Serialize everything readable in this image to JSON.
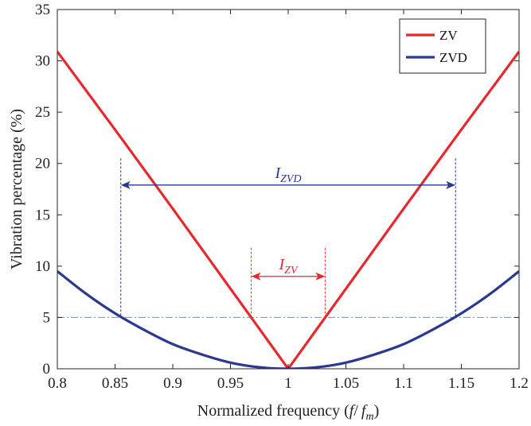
{
  "chart_data": {
    "type": "line",
    "title": "",
    "xlabel": "Normalized frequency (",
    "xlabel_math": {
      "f": "f",
      "slash": "/",
      "fm_base": "f",
      "fm_sub": "m",
      "close": ")"
    },
    "ylabel": "Vibration percentage (%)",
    "xlim": [
      0.8,
      1.2
    ],
    "ylim": [
      0,
      35
    ],
    "xticks": [
      "0.8",
      "0.85",
      "0.9",
      "0.95",
      "1",
      "1.05",
      "1.1",
      "1.15",
      "1.2"
    ],
    "yticks": [
      "0",
      "5",
      "10",
      "15",
      "20",
      "25",
      "30",
      "35"
    ],
    "grid": false,
    "legend_position": "top-right",
    "series": [
      {
        "name": "ZV",
        "color": "#e8282d",
        "x": [
          0.8,
          0.85,
          0.9,
          0.95,
          1.0,
          1.05,
          1.1,
          1.15,
          1.2
        ],
        "y": [
          30.9,
          23.3,
          15.6,
          7.8,
          0,
          7.8,
          15.6,
          23.3,
          30.9
        ]
      },
      {
        "name": "ZVD",
        "color": "#2b3990",
        "x": [
          0.8,
          0.825,
          0.85,
          0.875,
          0.9,
          0.925,
          0.95,
          0.975,
          1.0,
          1.025,
          1.05,
          1.075,
          1.1,
          1.125,
          1.15,
          1.175,
          1.2
        ],
        "y": [
          9.5,
          7.3,
          5.4,
          3.8,
          2.4,
          1.4,
          0.6,
          0.15,
          0,
          0.15,
          0.6,
          1.4,
          2.4,
          3.8,
          5.4,
          7.3,
          9.5
        ]
      }
    ],
    "threshold": {
      "y": 5,
      "color": "#4fb0d8"
    },
    "annotations": [
      {
        "label_base": "I",
        "label_sub": "ZVD",
        "color": "#2b3990",
        "x1": 0.855,
        "x2": 1.145,
        "arrow_y": 17.9,
        "line_top": 20.5,
        "line_bottom": 5
      },
      {
        "label_base": "I",
        "label_sub": "ZV",
        "color": "#e8282d",
        "x1": 0.968,
        "x2": 1.032,
        "arrow_y": 9.0,
        "line_top": 11.8,
        "line_bottom": 5
      }
    ]
  }
}
